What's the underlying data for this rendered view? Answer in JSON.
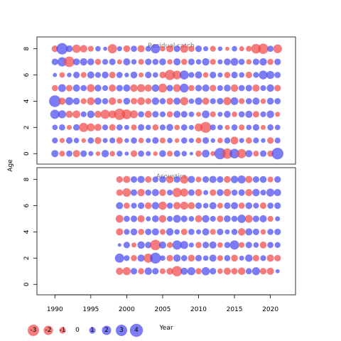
{
  "chart_data": {
    "type": "scatter",
    "subtype": "bubble-residual",
    "xlabel": "Year",
    "ylabel": "Age",
    "xlim": [
      1987.5,
      2023.5
    ],
    "x_ticks": [
      1990,
      1995,
      2000,
      2005,
      2010,
      2015,
      2020
    ],
    "colors": {
      "positive": "#4a4af0",
      "negative": "#f04a4a"
    },
    "legend": {
      "position": "bottom-left",
      "values": [
        -3,
        -2,
        -1,
        0,
        1,
        2,
        3,
        4
      ],
      "labels": [
        "-3",
        "-2",
        "-1",
        "0",
        "1",
        "2",
        "3",
        "4"
      ]
    },
    "panels": [
      {
        "title": "Residual catch",
        "ages": [
          0,
          1,
          2,
          3,
          4,
          5,
          6,
          7,
          8
        ],
        "ylim": [
          -0.8,
          8.9
        ],
        "y_ticks": [
          0,
          2,
          4,
          6,
          8
        ],
        "years": [
          1990,
          1991,
          1992,
          1993,
          1994,
          1995,
          1996,
          1997,
          1998,
          1999,
          2000,
          2001,
          2002,
          2003,
          2004,
          2005,
          2006,
          2007,
          2008,
          2009,
          2010,
          2011,
          2012,
          2013,
          2014,
          2015,
          2016,
          2017,
          2018,
          2019,
          2020,
          2021
        ],
        "residuals": [
          [
            1.2,
            -0.8,
            0.9,
            -1.2,
            1.0,
            0.6,
            -0.5,
            1.3,
            -0.7,
            0.8,
            0.4,
            -1.0,
            0.9,
            0.6,
            -0.5,
            1.1,
            -0.8,
            1.0,
            0.7,
            0.3,
            -0.9,
            1.4,
            -0.6,
            3.0,
            -2.5,
            2.2,
            -2.0,
            1.2,
            -0.8,
            1.0,
            -0.9,
            3.2
          ],
          [
            0.8,
            -0.6,
            1.0,
            0.7,
            -0.5,
            0.9,
            -1.1,
            0.6,
            0.8,
            -1.0,
            0.5,
            0.9,
            -0.7,
            0.6,
            1.0,
            -0.8,
            0.7,
            -0.5,
            0.9,
            0.6,
            -0.8,
            1.0,
            0.5,
            -0.7,
            0.9,
            -1.4,
            0.6,
            -0.9,
            0.8,
            0.5,
            -1.0,
            0.8
          ],
          [
            0.7,
            0.9,
            -0.6,
            1.0,
            -2.0,
            -1.5,
            -1.2,
            0.8,
            -1.0,
            0.9,
            0.6,
            -0.8,
            1.0,
            0.7,
            -0.9,
            0.8,
            1.1,
            -0.7,
            0.9,
            0.6,
            -1.5,
            -2.8,
            0.8,
            0.7,
            -0.6,
            0.9,
            -0.8,
            0.7,
            1.0,
            -0.6,
            0.9,
            0.7
          ],
          [
            2.0,
            1.5,
            -1.2,
            -1.4,
            0.8,
            1.3,
            -1.2,
            -2.0,
            -1.4,
            -3.0,
            -2.2,
            -1.5,
            0.9,
            -1.2,
            1.0,
            0.8,
            -0.9,
            1.2,
            1.0,
            0.7,
            -0.6,
            1.4,
            -0.8,
            0.6,
            1.1,
            -0.7,
            0.9,
            1.2,
            -1.0,
            0.8,
            1.3,
            -0.6
          ],
          [
            3.2,
            -1.2,
            1.5,
            1.1,
            -0.8,
            -1.4,
            1.2,
            0.9,
            -1.3,
            -0.6,
            1.1,
            -1.0,
            -1.4,
            -0.9,
            1.3,
            0.9,
            -1.1,
            1.2,
            -1.6,
            0.7,
            1.3,
            -1.2,
            0.8,
            1.0,
            -1.5,
            1.4,
            -0.8,
            0.9,
            1.2,
            -0.7,
            1.1,
            0.9
          ],
          [
            -0.9,
            1.4,
            -1.0,
            1.2,
            0.9,
            -1.4,
            1.1,
            0.8,
            -1.2,
            1.0,
            1.2,
            -1.3,
            -1.5,
            -1.2,
            1.3,
            -1.8,
            1.0,
            -1.4,
            1.8,
            -0.9,
            1.0,
            1.2,
            -1.0,
            0.8,
            1.1,
            -1.3,
            0.9,
            1.0,
            -1.2,
            0.8,
            1.3,
            -1.0
          ],
          [
            0.4,
            -0.7,
            0.5,
            1.0,
            -0.8,
            1.2,
            0.8,
            1.1,
            -1.0,
            0.9,
            0.5,
            1.1,
            -0.6,
            1.0,
            0.7,
            -1.0,
            -2.5,
            -1.8,
            1.9,
            0.8,
            1.2,
            -0.7,
            1.0,
            0.6,
            -0.9,
            1.0,
            0.7,
            -1.0,
            0.8,
            1.8,
            1.5,
            0.9
          ],
          [
            1.0,
            2.0,
            -2.6,
            1.1,
            1.3,
            1.1,
            -0.9,
            0.8,
            1.0,
            -0.6,
            1.2,
            0.7,
            -0.8,
            1.0,
            0.9,
            1.1,
            -0.7,
            1.2,
            -0.9,
            1.0,
            0.7,
            1.3,
            -0.8,
            0.6,
            1.1,
            1.4,
            0.9,
            -0.7,
            1.0,
            1.3,
            -0.9,
            1.0
          ],
          [
            -1.0,
            3.0,
            1.1,
            -1.6,
            -1.3,
            -0.8,
            0.7,
            0.4,
            -2.0,
            0.6,
            -1.1,
            0.9,
            -1.2,
            0.8,
            2.0,
            -0.7,
            -1.2,
            1.0,
            -1.5,
            -0.9,
            1.0,
            0.6,
            -0.8,
            0.5,
            -0.4,
            0.7,
            -0.6,
            -0.8,
            -2.2,
            -2.5,
            0.9,
            -1.8
          ]
        ]
      },
      {
        "title": "Acoustics",
        "ages": [
          1,
          2,
          3,
          4,
          5,
          6,
          7,
          8
        ],
        "ylim": [
          -0.8,
          8.9
        ],
        "y_ticks": [
          0,
          2,
          4,
          6,
          8
        ],
        "years": [
          1999,
          2000,
          2001,
          2002,
          2003,
          2004,
          2005,
          2006,
          2007,
          2008,
          2009,
          2010,
          2011,
          2012,
          2013,
          2014,
          2015,
          2016,
          2017,
          2018,
          2019,
          2020,
          2021
        ],
        "residuals": [
          [
            -1.2,
            -1.5,
            1.0,
            -0.9,
            1.3,
            1.0,
            -0.8,
            -1.1,
            -2.5,
            1.2,
            1.5,
            -0.9,
            1.6,
            1.0,
            -0.7,
            -1.2,
            -1.0,
            -1.3,
            0.9,
            1.5,
            -1.0,
            -1.2,
            0.4
          ],
          [
            2.0,
            0.8,
            -0.9,
            1.2,
            -2.0,
            2.8,
            0.7,
            -1.0,
            1.3,
            0.9,
            -1.1,
            1.0,
            0.7,
            1.2,
            -0.8,
            0.9,
            -1.1,
            0.6,
            1.3,
            -1.0,
            0.8,
            -1.2,
            -1.0
          ],
          [
            0.3,
            1.0,
            -0.6,
            1.3,
            1.0,
            -2.6,
            1.2,
            -0.8,
            2.0,
            1.5,
            0.6,
            -0.9,
            1.0,
            1.2,
            -0.7,
            0.9,
            2.0,
            -0.8,
            1.0,
            0.7,
            -1.1,
            0.9,
            0.8
          ],
          [
            -1.2,
            0.8,
            1.1,
            -0.9,
            1.0,
            1.2,
            -0.8,
            1.3,
            0.7,
            -1.0,
            0.9,
            0.6,
            1.2,
            -0.8,
            1.0,
            0.6,
            0.9,
            -1.3,
            1.2,
            1.0,
            -0.7,
            0.9,
            1.0
          ],
          [
            -1.4,
            0.9,
            1.0,
            -1.2,
            0.6,
            1.1,
            -1.3,
            0.8,
            1.4,
            1.0,
            0.7,
            -1.2,
            1.3,
            0.8,
            -1.0,
            1.1,
            0.9,
            1.6,
            -1.4,
            1.0,
            1.2,
            -0.8,
            0.6
          ],
          [
            1.2,
            -0.9,
            0.8,
            1.0,
            -1.1,
            1.3,
            -1.6,
            0.9,
            -1.3,
            -1.5,
            -1.2,
            1.0,
            0.7,
            1.2,
            -0.8,
            1.0,
            1.2,
            -0.9,
            1.1,
            0.8,
            -1.0,
            0.9,
            1.0
          ],
          [
            -1.0,
            -1.7,
            1.0,
            -1.3,
            0.9,
            1.2,
            -1.1,
            0.8,
            -2.0,
            -1.5,
            1.0,
            -1.2,
            0.6,
            -1.0,
            1.1,
            -1.3,
            0.9,
            1.0,
            -1.2,
            1.3,
            0.8,
            1.5,
            1.2
          ],
          [
            -1.0,
            -1.2,
            1.0,
            1.2,
            -1.0,
            0.9,
            1.1,
            -1.3,
            1.0,
            -1.6,
            1.2,
            -0.8,
            1.0,
            1.2,
            1.0,
            -1.1,
            1.3,
            1.5,
            -1.2,
            1.0,
            1.1,
            -0.8,
            1.0
          ]
        ]
      }
    ]
  }
}
